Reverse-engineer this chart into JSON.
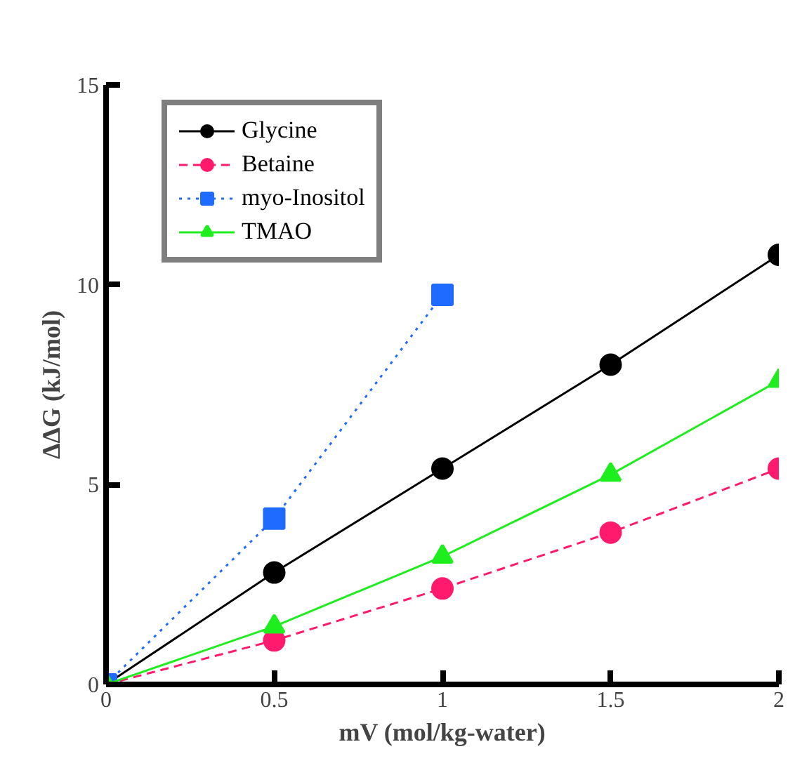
{
  "chart_data": {
    "type": "line",
    "xlabel": "mV (mol/kg-water)",
    "ylabel": "ΔΔG (kJ/mol)",
    "xlim": [
      0,
      2
    ],
    "ylim": [
      0,
      15
    ],
    "xticks": [
      0,
      0.5,
      1,
      1.5,
      2
    ],
    "yticks": [
      0,
      5,
      10,
      15
    ],
    "legend": "top left",
    "grid": false,
    "series": [
      {
        "name": "Glycine",
        "color": "#000000",
        "marker": "circle",
        "line_style": "solid",
        "x": [
          0,
          0.5,
          1,
          1.5,
          2
        ],
        "values": [
          0,
          2.8,
          5.4,
          8.0,
          10.75
        ]
      },
      {
        "name": "Betaine",
        "color": "#ff1a6e",
        "marker": "circle",
        "line_style": "dashed",
        "x": [
          0,
          0.5,
          1,
          1.5,
          2
        ],
        "values": [
          0,
          1.1,
          2.4,
          3.8,
          5.4
        ]
      },
      {
        "name": "myo-Inositol",
        "color": "#1f6bff",
        "marker": "square",
        "line_style": "dotted",
        "x": [
          0,
          0.5,
          1
        ],
        "values": [
          0,
          4.15,
          9.75
        ]
      },
      {
        "name": "TMAO",
        "color": "#1eed1e",
        "marker": "triangle",
        "line_style": "solid",
        "x": [
          0,
          0.5,
          1,
          1.5,
          2
        ],
        "values": [
          0,
          1.45,
          3.2,
          5.25,
          7.6
        ]
      }
    ]
  }
}
